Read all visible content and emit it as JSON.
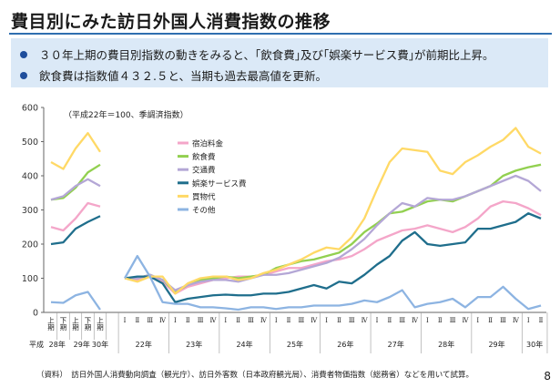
{
  "title": "費目別にみた訪日外国人消費指数の推移",
  "bullets": [
    "３０年上期の費目別指数の動きをみると、｢飲食費｣及び｢娯楽サービス費｣が前期比上昇。",
    "飲食費は指数値４３２.５と、当期も過去最高値を更新。"
  ],
  "source_note": "（資料）　訪日外国人消費動向調査（観光庁）、訪日外客数（日本政府観光局）、消費者物価指数（総務省）などを用いて試算。",
  "page_number": "8",
  "chart_data": {
    "type": "line",
    "note": "（平成22年＝100、季調済指数）",
    "y_ticks": [
      0,
      100,
      200,
      300,
      400,
      500,
      600
    ],
    "ylim": [
      0,
      600
    ],
    "era_label": "平成",
    "legend_position": "center",
    "half_year_x": [
      "上期",
      "下期",
      "上期",
      "下期",
      "上期"
    ],
    "half_year_groups": [
      {
        "label": "28年",
        "span": [
          0,
          1
        ]
      },
      {
        "label": "29年",
        "span": [
          2,
          3
        ]
      },
      {
        "label": "30年",
        "span": [
          4,
          4
        ]
      }
    ],
    "quarter_x": [
      "Ⅰ",
      "Ⅱ",
      "Ⅲ",
      "Ⅳ",
      "Ⅰ",
      "Ⅱ",
      "Ⅲ",
      "Ⅳ",
      "Ⅰ",
      "Ⅱ",
      "Ⅲ",
      "Ⅳ",
      "Ⅰ",
      "Ⅱ",
      "Ⅲ",
      "Ⅳ",
      "Ⅰ",
      "Ⅱ",
      "Ⅲ",
      "Ⅳ",
      "Ⅰ",
      "Ⅱ",
      "Ⅲ",
      "Ⅳ",
      "Ⅰ",
      "Ⅱ",
      "Ⅲ",
      "Ⅳ",
      "Ⅰ",
      "Ⅱ",
      "Ⅲ",
      "Ⅳ",
      "Ⅰ",
      "Ⅱ"
    ],
    "quarter_groups": [
      {
        "label": "22年",
        "span": [
          0,
          3
        ]
      },
      {
        "label": "23年",
        "span": [
          4,
          7
        ]
      },
      {
        "label": "24年",
        "span": [
          8,
          11
        ]
      },
      {
        "label": "25年",
        "span": [
          12,
          15
        ]
      },
      {
        "label": "26年",
        "span": [
          16,
          19
        ]
      },
      {
        "label": "27年",
        "span": [
          20,
          23
        ]
      },
      {
        "label": "28年",
        "span": [
          24,
          27
        ]
      },
      {
        "label": "29年",
        "span": [
          28,
          31
        ]
      },
      {
        "label": "30年",
        "span": [
          32,
          33
        ]
      }
    ],
    "series": [
      {
        "name": "宿泊料金",
        "color": "#f4a6c9",
        "half_year": [
          250,
          240,
          275,
          320,
          310
        ],
        "quarterly": [
          100,
          95,
          105,
          90,
          55,
          75,
          85,
          95,
          100,
          105,
          105,
          110,
          120,
          130,
          130,
          140,
          150,
          155,
          165,
          185,
          210,
          225,
          240,
          245,
          255,
          245,
          235,
          250,
          275,
          310,
          325,
          320,
          305,
          285
        ]
      },
      {
        "name": "飲食費",
        "color": "#92d050",
        "half_year": [
          330,
          335,
          365,
          410,
          432.5
        ],
        "quarterly": [
          100,
          100,
          110,
          95,
          60,
          80,
          95,
          100,
          105,
          100,
          105,
          110,
          130,
          140,
          150,
          155,
          165,
          175,
          200,
          235,
          260,
          290,
          295,
          310,
          325,
          330,
          325,
          340,
          355,
          370,
          400,
          415,
          425,
          432.5
        ]
      },
      {
        "name": "交通費",
        "color": "#b4a7d6",
        "half_year": [
          330,
          340,
          370,
          390,
          370
        ],
        "quarterly": [
          100,
          100,
          110,
          95,
          65,
          80,
          90,
          95,
          95,
          90,
          100,
          110,
          110,
          115,
          125,
          135,
          145,
          160,
          185,
          215,
          255,
          290,
          320,
          310,
          335,
          330,
          330,
          340,
          355,
          370,
          385,
          400,
          385,
          355
        ]
      },
      {
        "name": "娯楽サービス費",
        "color": "#1f6e8c",
        "half_year": [
          200,
          205,
          245,
          265,
          282
        ],
        "quarterly": [
          100,
          105,
          105,
          85,
          30,
          40,
          45,
          50,
          52,
          50,
          50,
          55,
          55,
          60,
          70,
          80,
          70,
          90,
          85,
          110,
          140,
          165,
          210,
          235,
          200,
          195,
          200,
          205,
          245,
          245,
          255,
          265,
          290,
          275
        ]
      },
      {
        "name": "買物代",
        "color": "#ffd966",
        "half_year": [
          440,
          420,
          480,
          525,
          470
        ],
        "quarterly": [
          100,
          90,
          105,
          105,
          55,
          85,
          100,
          105,
          105,
          95,
          100,
          115,
          125,
          140,
          155,
          175,
          190,
          185,
          220,
          275,
          360,
          440,
          480,
          475,
          470,
          415,
          405,
          440,
          460,
          485,
          505,
          540,
          485,
          465
        ]
      },
      {
        "name": "その他",
        "color": "#8db4e2",
        "half_year": [
          30,
          28,
          50,
          60,
          8
        ],
        "quarterly": [
          100,
          165,
          105,
          30,
          25,
          25,
          15,
          15,
          12,
          8,
          15,
          15,
          10,
          15,
          15,
          20,
          20,
          20,
          25,
          35,
          30,
          45,
          65,
          15,
          25,
          30,
          40,
          15,
          45,
          45,
          75,
          40,
          10,
          20
        ]
      }
    ]
  }
}
